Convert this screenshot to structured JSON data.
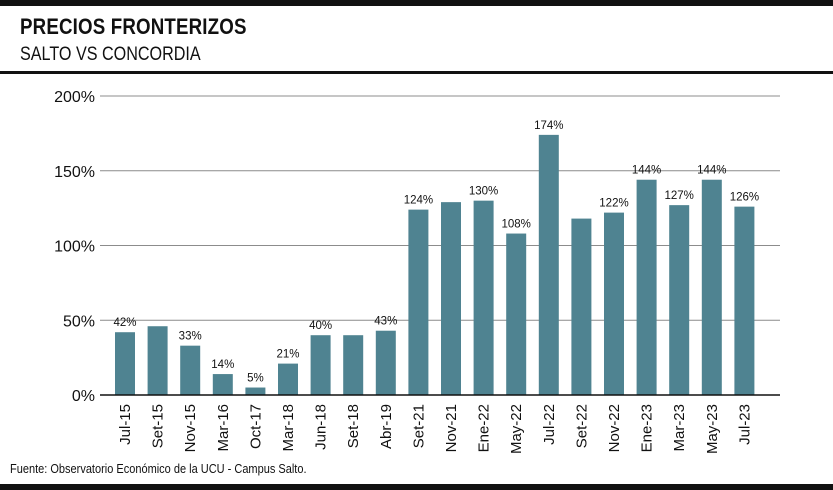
{
  "header": {
    "title": "PRECIOS FRONTERIZOS",
    "subtitle": "SALTO VS CONCORDIA"
  },
  "footer": {
    "source": "Fuente: Observatorio Económico de la UCU - Campus Salto."
  },
  "colors": {
    "bar": "#4f8391",
    "grid": "#8c8c8c",
    "text": "#111111"
  },
  "chart_data": {
    "type": "bar",
    "title": "PRECIOS FRONTERIZOS",
    "subtitle": "SALTO VS CONCORDIA",
    "xlabel": "",
    "ylabel": "",
    "ylim": [
      0,
      200
    ],
    "yticks": [
      0,
      50,
      100,
      150,
      200
    ],
    "ytick_labels": [
      "0%",
      "50%",
      "100%",
      "150%",
      "200%"
    ],
    "grid": true,
    "legend": "none",
    "categories": [
      "Jul-15",
      "Set-15",
      "Nov-15",
      "Mar-16",
      "Oct-17",
      "Mar-18",
      "Jun-18",
      "Set-18",
      "Abr-19",
      "Set-21",
      "Nov-21",
      "Ene-22",
      "May-22",
      "Jul-22",
      "Set-22",
      "Nov-22",
      "Ene-23",
      "Mar-23",
      "May-23",
      "Jul-23"
    ],
    "values": [
      42,
      46,
      33,
      14,
      5,
      21,
      40,
      40,
      43,
      124,
      129,
      130,
      108,
      174,
      118,
      122,
      144,
      127,
      144,
      126
    ],
    "data_labels": [
      "42%",
      "",
      "33%",
      "14%",
      "5%",
      "21%",
      "40%",
      "",
      "43%",
      "124%",
      "",
      "130%",
      "108%",
      "174%",
      "",
      "122%",
      "144%",
      "127%",
      "144%",
      "126%"
    ]
  }
}
